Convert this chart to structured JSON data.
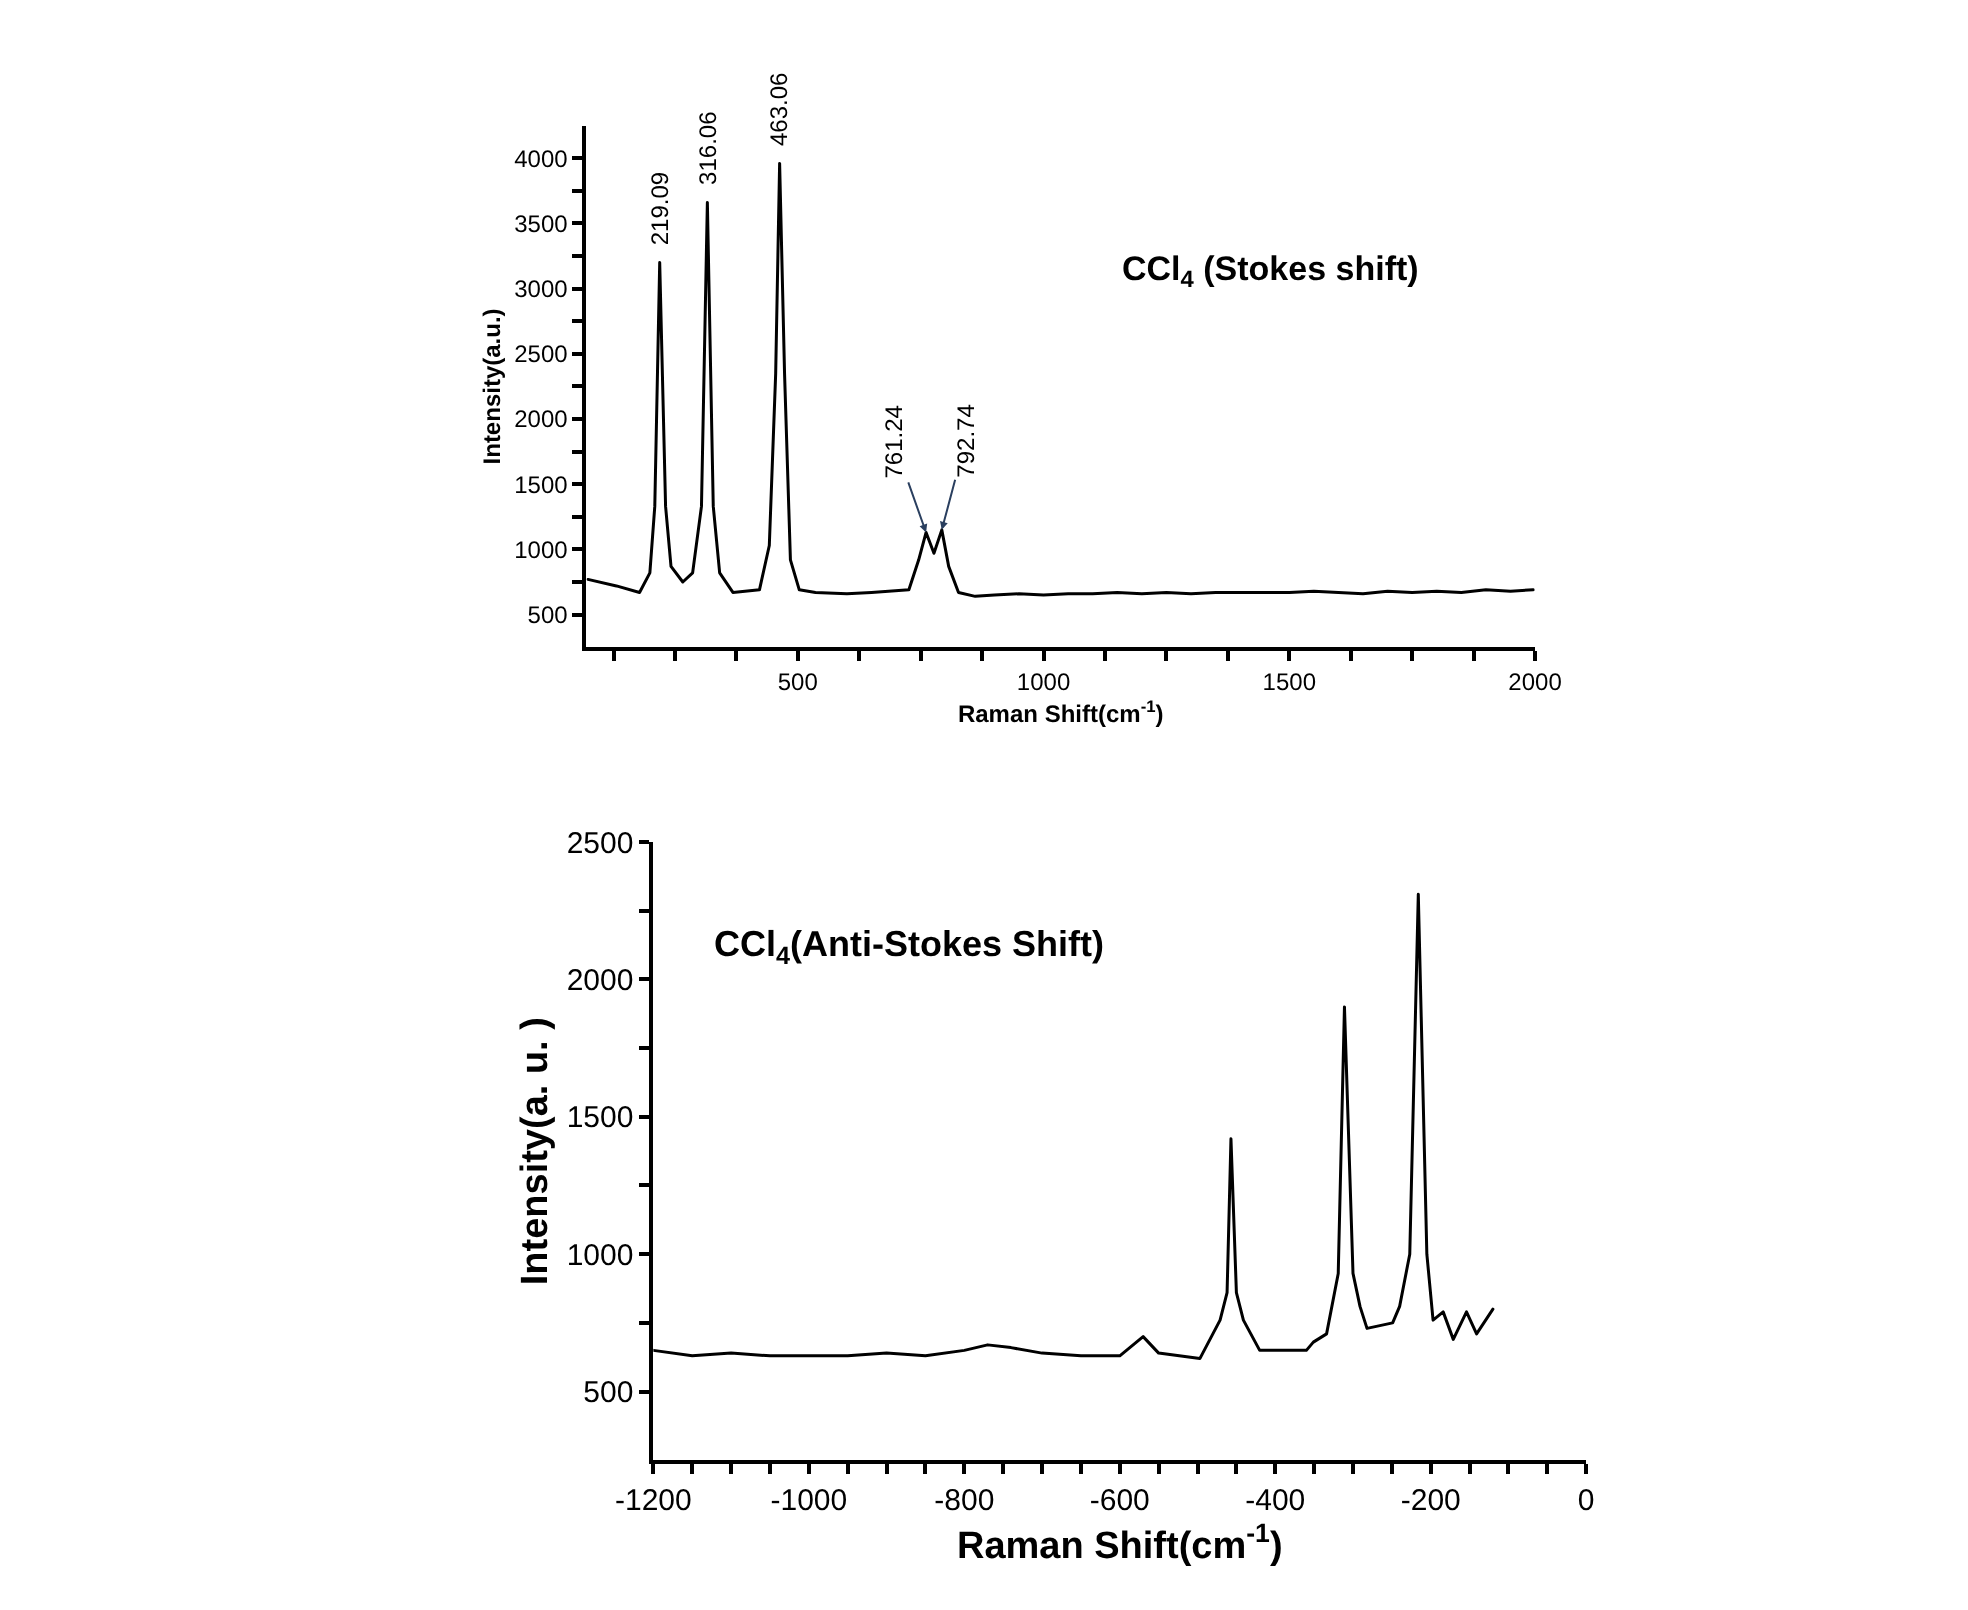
{
  "chart_data": [
    {
      "type": "line",
      "title": "CCl$_{4}$ (Stokes shift)",
      "xlabel": "Raman Shift(cm$^{-1}$)",
      "ylabel": "Intensity(a.u.)",
      "x": [
        73,
        131,
        178,
        199,
        209,
        219,
        231,
        242,
        266,
        286,
        304,
        316,
        328,
        341,
        368,
        422,
        442,
        455,
        463,
        473,
        485,
        503,
        536,
        600,
        650,
        726,
        746,
        761,
        777,
        793,
        807,
        827,
        861,
        900,
        950,
        1000,
        1050,
        1100,
        1150,
        1200,
        1250,
        1300,
        1350,
        1400,
        1450,
        1500,
        1550,
        1600,
        1650,
        1700,
        1750,
        1800,
        1850,
        1900,
        1950,
        1996
      ],
      "series": [
        {
          "color": "#000000",
          "values": [
            770,
            720,
            670,
            820,
            1330,
            3200,
            1330,
            870,
            750,
            820,
            1330,
            3660,
            1330,
            820,
            670,
            690,
            1030,
            2350,
            3960,
            2350,
            920,
            690,
            670,
            660,
            670,
            690,
            920,
            1130,
            970,
            1150,
            870,
            670,
            640,
            650,
            660,
            650,
            660,
            660,
            670,
            660,
            670,
            660,
            670,
            670,
            670,
            670,
            680,
            670,
            660,
            680,
            670,
            680,
            670,
            690,
            680,
            690
          ]
        }
      ],
      "xlim": [
        70,
        2000
      ],
      "ylim": [
        250,
        4250
      ],
      "xticks": [
        {
          "value": 125,
          "label": null
        },
        {
          "value": 250,
          "label": null
        },
        {
          "value": 375,
          "label": null
        },
        500,
        {
          "value": 625,
          "label": null
        },
        {
          "value": 750,
          "label": null
        },
        {
          "value": 875,
          "label": null
        },
        1000,
        {
          "value": 1125,
          "label": null
        },
        {
          "value": 1250,
          "label": null
        },
        {
          "value": 1375,
          "label": null
        },
        1500,
        {
          "value": 1625,
          "label": null
        },
        {
          "value": 1750,
          "label": null
        },
        {
          "value": 1875,
          "label": null
        },
        2000
      ],
      "yticks": [
        500,
        {
          "value": 750,
          "label": null
        },
        1000,
        {
          "value": 1250,
          "label": null
        },
        1500,
        {
          "value": 1750,
          "label": null
        },
        2000,
        {
          "value": 2250,
          "label": null
        },
        2500,
        {
          "value": 2750,
          "label": null
        },
        3000,
        {
          "value": 3250,
          "label": null
        },
        3500,
        {
          "value": 3750,
          "label": null
        },
        4000
      ],
      "annotations": [
        {
          "text": "219.09",
          "x": 219,
          "y": 3200
        },
        {
          "text": "316.06",
          "x": 316,
          "y": 3660
        },
        {
          "text": "463.06",
          "x": 463,
          "y": 3960
        },
        {
          "text": "761.24",
          "x": 761,
          "y": 1130
        },
        {
          "text": "792.74",
          "x": 793,
          "y": 1150
        }
      ]
    },
    {
      "type": "line",
      "title": "CCl$_{4}$(Anti-Stokes Shift)",
      "xlabel": "Raman Shift(cm$^{-1}$)",
      "ylabel": "Intensity(a. u. )",
      "x": [
        -1200,
        -1150,
        -1100,
        -1050,
        -1000,
        -950,
        -900,
        -850,
        -800,
        -770,
        -740,
        -700,
        -650,
        -600,
        -570,
        -550,
        -497,
        -471,
        -462,
        -457,
        -450,
        -441,
        -420,
        -360,
        -351,
        -334,
        -319,
        -311,
        -300,
        -291,
        -282,
        -249,
        -240,
        -227,
        -216,
        -205,
        -197,
        -184,
        -171,
        -154,
        -141,
        -120
      ],
      "series": [
        {
          "color": "#000000",
          "values": [
            650,
            630,
            640,
            630,
            630,
            630,
            640,
            630,
            650,
            670,
            660,
            640,
            630,
            630,
            700,
            640,
            620,
            760,
            860,
            1420,
            860,
            760,
            650,
            650,
            680,
            710,
            930,
            1900,
            930,
            810,
            730,
            750,
            810,
            1000,
            2310,
            1000,
            760,
            790,
            690,
            790,
            710,
            800
          ]
        }
      ],
      "xlim": [
        -1200,
        0
      ],
      "ylim": [
        250,
        2500
      ],
      "xticks": [
        -1200,
        {
          "value": -1150,
          "label": null
        },
        {
          "value": -1100,
          "label": null
        },
        {
          "value": -1050,
          "label": null
        },
        -1000,
        {
          "value": -950,
          "label": null
        },
        {
          "value": -900,
          "label": null
        },
        {
          "value": -850,
          "label": null
        },
        -800,
        {
          "value": -750,
          "label": null
        },
        {
          "value": -700,
          "label": null
        },
        {
          "value": -650,
          "label": null
        },
        -600,
        {
          "value": -550,
          "label": null
        },
        {
          "value": -500,
          "label": null
        },
        {
          "value": -450,
          "label": null
        },
        -400,
        {
          "value": -350,
          "label": null
        },
        {
          "value": -300,
          "label": null
        },
        {
          "value": -250,
          "label": null
        },
        -200,
        {
          "value": -150,
          "label": null
        },
        {
          "value": -100,
          "label": null
        },
        {
          "value": -50,
          "label": null
        },
        0
      ],
      "yticks": [
        500,
        {
          "value": 750,
          "label": null
        },
        1000,
        {
          "value": 1250,
          "label": null
        },
        1500,
        {
          "value": 1750,
          "label": null
        },
        2000,
        {
          "value": 2250,
          "label": null
        },
        2500
      ]
    }
  ]
}
